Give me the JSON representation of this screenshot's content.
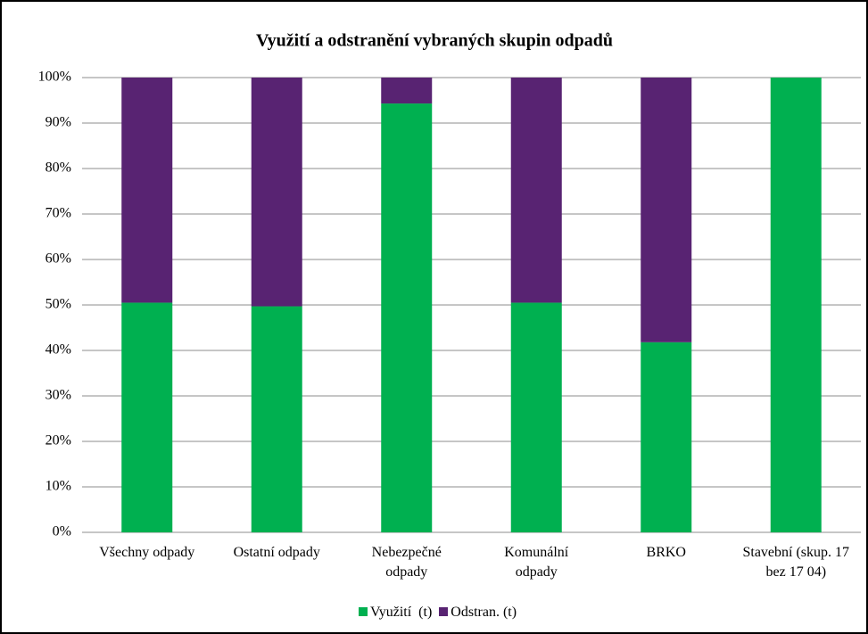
{
  "chart_data": {
    "type": "stacked_bar",
    "title": "Využití a odstranění vybraných skupin odpadů",
    "categories": [
      "Všechny odpady",
      "Ostatní odpady",
      "Nebezpečné odpady",
      "Komunální odpady",
      "BRKO",
      "Stavební (skup. 17 bez 17 04)"
    ],
    "series": [
      {
        "name": "Využití  (t)",
        "color": "#00b050",
        "values": [
          50.5,
          49.7,
          94.3,
          50.5,
          41.8,
          100
        ]
      },
      {
        "name": "Odstran. (t)",
        "color": "#582372",
        "values": [
          49.5,
          50.3,
          5.7,
          49.5,
          58.2,
          0
        ]
      }
    ],
    "ylim": [
      0,
      100
    ],
    "yticks": [
      {
        "value": 0,
        "label": "0%"
      },
      {
        "value": 10,
        "label": "10%"
      },
      {
        "value": 20,
        "label": "20%"
      },
      {
        "value": 30,
        "label": "30%"
      },
      {
        "value": 40,
        "label": "40%"
      },
      {
        "value": 50,
        "label": "50%"
      },
      {
        "value": 60,
        "label": "60%"
      },
      {
        "value": 70,
        "label": "70%"
      },
      {
        "value": 80,
        "label": "80%"
      },
      {
        "value": 90,
        "label": "90%"
      },
      {
        "value": 100,
        "label": "100%"
      }
    ],
    "grid": true,
    "legend": "bottom"
  }
}
